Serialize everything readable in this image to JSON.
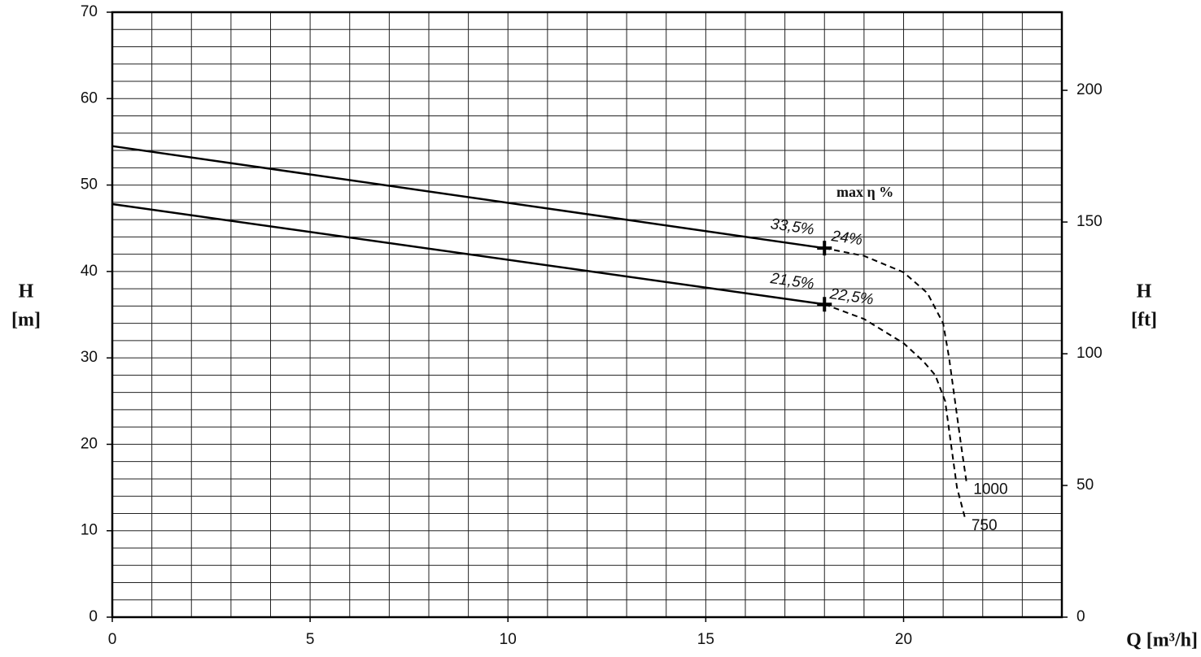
{
  "chart_data": {
    "type": "line",
    "x_label": "Q [m³/h]",
    "y_label": "H",
    "y_unit": "[m]",
    "y2_label": "H",
    "y2_unit": "[ft]",
    "xlim": [
      0,
      24
    ],
    "xticks": [
      0,
      5,
      10,
      15,
      20
    ],
    "ylim": [
      0,
      70
    ],
    "yticks": [
      0,
      10,
      20,
      30,
      40,
      50,
      60,
      70
    ],
    "y2lim": [
      0,
      229.66
    ],
    "y2ticks": [
      0,
      50,
      100,
      150,
      200
    ],
    "xgrid": [
      1,
      2,
      3,
      4,
      5,
      6,
      7,
      8,
      9,
      10,
      11,
      12,
      13,
      14,
      15,
      16,
      17,
      18,
      19,
      20,
      21,
      22,
      23
    ],
    "ygrid": [
      2,
      4,
      6,
      8,
      10,
      12,
      14,
      16,
      18,
      20,
      22,
      24,
      26,
      28,
      30,
      32,
      34,
      36,
      38,
      40,
      42,
      44,
      46,
      48,
      50,
      52,
      54,
      56,
      58,
      60,
      62,
      64,
      66,
      68
    ],
    "grid": true,
    "series": [
      {
        "name": "1000",
        "color": "#000000",
        "marker_index": 1,
        "x": [
          0,
          18,
          19,
          20,
          20.6,
          21,
          21.15,
          21.3,
          21.45,
          21.6
        ],
        "values": [
          54.5,
          42.7,
          41.8,
          39.9,
          37.5,
          34,
          30,
          25,
          20,
          15.3
        ]
      },
      {
        "name": "750",
        "color": "#000000",
        "marker_index": 1,
        "x": [
          0,
          18,
          19,
          20,
          20.5,
          20.8,
          21.05,
          21.2,
          21.35,
          21.55
        ],
        "values": [
          47.8,
          36.2,
          34.5,
          31.7,
          29.6,
          28,
          25,
          20,
          15,
          11.5
        ]
      }
    ],
    "annotations": [
      "max η %",
      "33,5%",
      "24%",
      "21,5%",
      "22,5%"
    ]
  }
}
